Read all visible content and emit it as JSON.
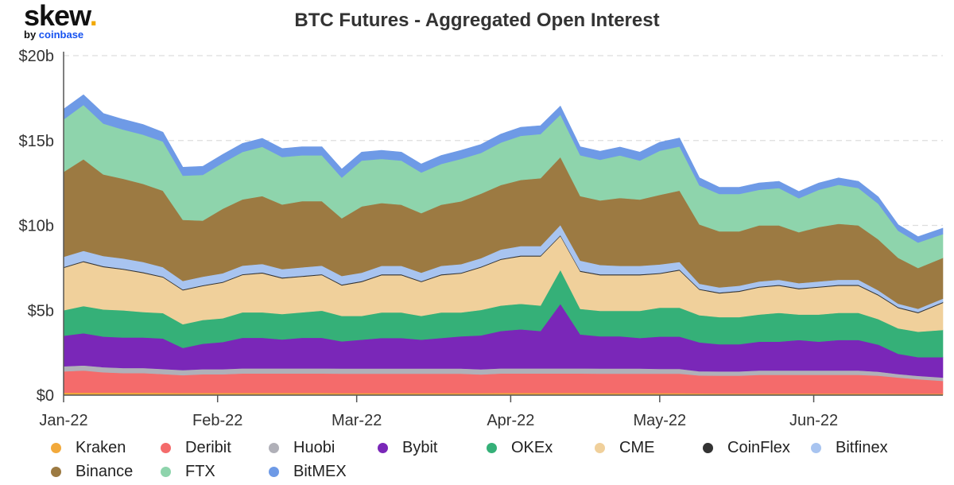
{
  "logo": {
    "brand": "skew",
    "dot": ".",
    "by": "by",
    "company": "coinbase"
  },
  "chart_data": {
    "type": "area",
    "stacked": true,
    "title": "BTC Futures - Aggregated Open Interest",
    "xlabel": "",
    "ylabel": "",
    "ylim": [
      0,
      20
    ],
    "y_unit": "billion USD",
    "yticks": [
      0,
      5,
      10,
      15,
      20
    ],
    "ytick_labels": [
      "$0",
      "$5b",
      "$10b",
      "$15b",
      "$20b"
    ],
    "xticks": [
      "2022-01-01",
      "2022-02-01",
      "2022-03-01",
      "2022-04-01",
      "2022-05-01",
      "2022-06-01"
    ],
    "xtick_labels": [
      "Jan-22",
      "Feb-22",
      "Mar-22",
      "Apr-22",
      "May-22",
      "Jun-22"
    ],
    "xlim": [
      "2022-01-01",
      "2022-06-27"
    ],
    "grid": "horizontal dashed",
    "legend_position": "bottom",
    "x": [
      "2022-01-01",
      "2022-01-05",
      "2022-01-09",
      "2022-01-13",
      "2022-01-17",
      "2022-01-21",
      "2022-01-25",
      "2022-01-29",
      "2022-02-02",
      "2022-02-06",
      "2022-02-10",
      "2022-02-14",
      "2022-02-18",
      "2022-02-22",
      "2022-02-26",
      "2022-03-02",
      "2022-03-06",
      "2022-03-10",
      "2022-03-14",
      "2022-03-18",
      "2022-03-22",
      "2022-03-26",
      "2022-03-30",
      "2022-04-03",
      "2022-04-07",
      "2022-04-11",
      "2022-04-15",
      "2022-04-19",
      "2022-04-23",
      "2022-04-27",
      "2022-05-01",
      "2022-05-05",
      "2022-05-09",
      "2022-05-13",
      "2022-05-17",
      "2022-05-21",
      "2022-05-25",
      "2022-05-29",
      "2022-06-02",
      "2022-06-06",
      "2022-06-10",
      "2022-06-14",
      "2022-06-18",
      "2022-06-22",
      "2022-06-27"
    ],
    "series": [
      {
        "name": "Kraken",
        "color": "#f2a93b",
        "values": [
          0.15,
          0.15,
          0.15,
          0.15,
          0.15,
          0.14,
          0.13,
          0.13,
          0.13,
          0.13,
          0.13,
          0.13,
          0.13,
          0.13,
          0.12,
          0.12,
          0.12,
          0.12,
          0.12,
          0.12,
          0.12,
          0.12,
          0.13,
          0.13,
          0.13,
          0.13,
          0.13,
          0.12,
          0.12,
          0.12,
          0.12,
          0.12,
          0.11,
          0.1,
          0.1,
          0.1,
          0.1,
          0.1,
          0.1,
          0.1,
          0.1,
          0.1,
          0.09,
          0.09,
          0.09
        ]
      },
      {
        "name": "Deribit",
        "color": "#f46b6b",
        "values": [
          1.25,
          1.3,
          1.2,
          1.15,
          1.15,
          1.1,
          1.05,
          1.1,
          1.1,
          1.15,
          1.15,
          1.15,
          1.15,
          1.15,
          1.15,
          1.15,
          1.15,
          1.15,
          1.15,
          1.15,
          1.15,
          1.1,
          1.15,
          1.15,
          1.15,
          1.15,
          1.15,
          1.15,
          1.15,
          1.15,
          1.15,
          1.15,
          1.05,
          1.05,
          1.05,
          1.1,
          1.1,
          1.1,
          1.1,
          1.1,
          1.1,
          1.05,
          0.95,
          0.85,
          0.75
        ]
      },
      {
        "name": "Huobi",
        "color": "#b0b0b8",
        "values": [
          0.3,
          0.3,
          0.3,
          0.3,
          0.3,
          0.3,
          0.3,
          0.3,
          0.3,
          0.3,
          0.3,
          0.3,
          0.3,
          0.3,
          0.3,
          0.3,
          0.3,
          0.3,
          0.3,
          0.3,
          0.3,
          0.3,
          0.3,
          0.3,
          0.3,
          0.3,
          0.3,
          0.3,
          0.3,
          0.3,
          0.28,
          0.28,
          0.25,
          0.25,
          0.25,
          0.25,
          0.25,
          0.25,
          0.25,
          0.25,
          0.25,
          0.23,
          0.2,
          0.2,
          0.2
        ]
      },
      {
        "name": "Bybit",
        "color": "#7a27b8",
        "values": [
          1.8,
          1.9,
          1.8,
          1.8,
          1.8,
          1.8,
          1.3,
          1.5,
          1.6,
          1.8,
          1.8,
          1.7,
          1.8,
          1.8,
          1.6,
          1.7,
          1.8,
          1.8,
          1.7,
          1.8,
          1.9,
          2.0,
          2.2,
          2.3,
          2.2,
          3.8,
          2.0,
          1.9,
          1.9,
          1.8,
          1.9,
          1.9,
          1.7,
          1.6,
          1.6,
          1.7,
          1.7,
          1.8,
          1.7,
          1.8,
          1.8,
          1.6,
          1.2,
          1.1,
          1.2
        ]
      },
      {
        "name": "OKEx",
        "color": "#35b078",
        "values": [
          1.5,
          1.6,
          1.6,
          1.6,
          1.5,
          1.5,
          1.4,
          1.4,
          1.4,
          1.5,
          1.5,
          1.5,
          1.5,
          1.6,
          1.5,
          1.4,
          1.5,
          1.5,
          1.4,
          1.5,
          1.4,
          1.5,
          1.5,
          1.5,
          1.5,
          2.0,
          1.5,
          1.5,
          1.5,
          1.6,
          1.7,
          1.7,
          1.6,
          1.6,
          1.6,
          1.6,
          1.7,
          1.5,
          1.6,
          1.6,
          1.6,
          1.5,
          1.5,
          1.5,
          1.6
        ]
      },
      {
        "name": "CME",
        "color": "#f0d09b",
        "values": [
          2.5,
          2.6,
          2.5,
          2.4,
          2.3,
          2.1,
          2.0,
          2.0,
          2.1,
          2.2,
          2.3,
          2.1,
          2.1,
          2.1,
          1.8,
          2.0,
          2.2,
          2.2,
          2.0,
          2.2,
          2.3,
          2.5,
          2.7,
          2.8,
          2.9,
          2.0,
          2.2,
          2.1,
          2.1,
          2.1,
          2.0,
          2.2,
          1.5,
          1.4,
          1.5,
          1.6,
          1.6,
          1.5,
          1.6,
          1.6,
          1.6,
          1.4,
          1.2,
          1.1,
          1.6
        ]
      },
      {
        "name": "CoinFlex",
        "color": "#333333",
        "values": [
          0.05,
          0.05,
          0.05,
          0.05,
          0.05,
          0.05,
          0.05,
          0.05,
          0.05,
          0.05,
          0.05,
          0.05,
          0.05,
          0.05,
          0.05,
          0.05,
          0.05,
          0.05,
          0.05,
          0.05,
          0.05,
          0.05,
          0.05,
          0.05,
          0.05,
          0.05,
          0.05,
          0.05,
          0.05,
          0.05,
          0.05,
          0.05,
          0.05,
          0.05,
          0.05,
          0.05,
          0.05,
          0.05,
          0.05,
          0.05,
          0.05,
          0.05,
          0.05,
          0.05,
          0.05
        ]
      },
      {
        "name": "Bitfinex",
        "color": "#a8c4f0",
        "values": [
          0.6,
          0.6,
          0.6,
          0.6,
          0.6,
          0.55,
          0.5,
          0.5,
          0.5,
          0.5,
          0.5,
          0.5,
          0.5,
          0.5,
          0.5,
          0.5,
          0.5,
          0.5,
          0.5,
          0.5,
          0.5,
          0.5,
          0.55,
          0.55,
          0.55,
          0.6,
          0.6,
          0.55,
          0.5,
          0.5,
          0.5,
          0.45,
          0.3,
          0.3,
          0.3,
          0.3,
          0.3,
          0.3,
          0.3,
          0.3,
          0.3,
          0.25,
          0.2,
          0.2,
          0.2
        ]
      },
      {
        "name": "Binance",
        "color": "#9c7a42",
        "values": [
          5.0,
          5.4,
          4.8,
          4.7,
          4.6,
          4.5,
          3.6,
          3.3,
          3.8,
          3.9,
          4.0,
          3.8,
          3.9,
          3.8,
          3.4,
          3.9,
          3.7,
          3.6,
          3.5,
          3.6,
          3.7,
          3.8,
          3.8,
          3.9,
          4.0,
          4.0,
          3.8,
          3.8,
          4.0,
          3.9,
          4.1,
          4.2,
          3.5,
          3.3,
          3.2,
          3.3,
          3.2,
          3.0,
          3.2,
          3.3,
          3.2,
          3.0,
          2.7,
          2.4,
          2.4
        ]
      },
      {
        "name": "FTX",
        "color": "#8ed4ac",
        "values": [
          3.1,
          3.2,
          3.0,
          2.9,
          2.9,
          2.9,
          2.6,
          2.7,
          2.7,
          2.8,
          2.9,
          2.8,
          2.7,
          2.7,
          2.4,
          2.7,
          2.6,
          2.6,
          2.4,
          2.4,
          2.5,
          2.4,
          2.5,
          2.6,
          2.6,
          2.5,
          2.4,
          2.4,
          2.5,
          2.3,
          2.6,
          2.6,
          2.3,
          2.2,
          2.2,
          2.1,
          2.2,
          2.0,
          2.2,
          2.3,
          2.2,
          2.1,
          1.6,
          1.5,
          1.4
        ]
      },
      {
        "name": "BitMEX",
        "color": "#6e9ae6",
        "values": [
          0.6,
          0.6,
          0.6,
          0.6,
          0.6,
          0.55,
          0.5,
          0.5,
          0.5,
          0.5,
          0.5,
          0.5,
          0.5,
          0.5,
          0.5,
          0.5,
          0.5,
          0.5,
          0.5,
          0.5,
          0.5,
          0.5,
          0.5,
          0.5,
          0.5,
          0.5,
          0.5,
          0.5,
          0.5,
          0.5,
          0.5,
          0.5,
          0.45,
          0.4,
          0.4,
          0.4,
          0.4,
          0.4,
          0.4,
          0.4,
          0.4,
          0.4,
          0.35,
          0.35,
          0.35
        ]
      }
    ]
  }
}
